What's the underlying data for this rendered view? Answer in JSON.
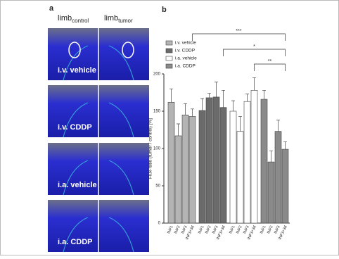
{
  "panel_a": {
    "label": "a",
    "headers": [
      {
        "main": "limb",
        "sub": "control"
      },
      {
        "main": "limb",
        "sub": "tumor"
      }
    ],
    "images": [
      "i.v. vehicle",
      "i.v. CDDP",
      "i.a. vehicle",
      "i.a. CDDP"
    ]
  },
  "chart_data": {
    "type": "bar",
    "panel_label": "b",
    "y_label": "Flux-ratio (tumor / control) [%]",
    "categories": [
      "INF1",
      "INF2",
      "INF3",
      "INF3+3d"
    ],
    "series": [
      {
        "name": "i.v. vehicle",
        "color": "#b4b4b4",
        "values": [
          162,
          117,
          145,
          143
        ],
        "errors": [
          18,
          16,
          15,
          10
        ]
      },
      {
        "name": "i.v. CDDP",
        "color": "#6b6b6b",
        "values": [
          151,
          168,
          169,
          155
        ],
        "errors": [
          16,
          6,
          20,
          23
        ]
      },
      {
        "name": "i.a. vehicle",
        "color": "#ffffff",
        "values": [
          150,
          123,
          163,
          178
        ],
        "errors": [
          14,
          20,
          10,
          17
        ]
      },
      {
        "name": "i.a. CDDP",
        "color": "#8a8a8a",
        "values": [
          166,
          82,
          123,
          99
        ],
        "errors": [
          12,
          15,
          15,
          10
        ]
      }
    ],
    "ylim": [
      0,
      200
    ],
    "yticks": [
      0,
      50,
      100,
      150,
      200
    ],
    "significance": [
      "***",
      "*",
      "**"
    ]
  }
}
